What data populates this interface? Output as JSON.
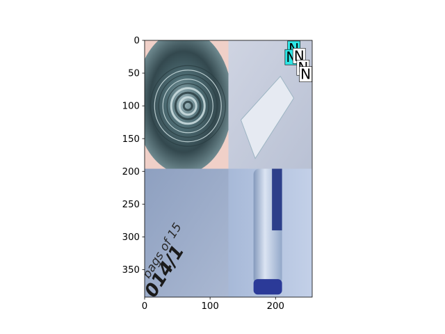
{
  "chart_data": {
    "type": "image",
    "title": "",
    "xlabel": "",
    "ylabel": "",
    "xlim": [
      0,
      256
    ],
    "ylim": [
      392,
      0
    ],
    "xticks": [
      0,
      100,
      200
    ],
    "yticks": [
      0,
      50,
      100,
      150,
      200,
      250,
      300,
      350
    ],
    "grid": false,
    "panels": [
      {
        "name": "top-left-glass-bottom",
        "extent": [
          0,
          128,
          0,
          196
        ],
        "tone": "#3f5961"
      },
      {
        "name": "top-right-paper",
        "extent": [
          128,
          256,
          0,
          196
        ],
        "tone": "#c6ccdb"
      },
      {
        "name": "bottom-left-bag-print",
        "extent": [
          0,
          128,
          196,
          392
        ],
        "tone": "#97a8c6"
      },
      {
        "name": "bottom-right-bottle",
        "extent": [
          128,
          256,
          196,
          392
        ],
        "tone": "#aebfdd"
      }
    ],
    "annotations": [
      {
        "text": "N",
        "x": 228,
        "y": 1,
        "box": "#2ee6e6"
      },
      {
        "text": "N",
        "x": 224,
        "y": 14,
        "box": "#2ee6e6"
      },
      {
        "text": "N",
        "x": 236,
        "y": 12,
        "box": "#ffffff"
      },
      {
        "text": "N",
        "x": 242,
        "y": 30,
        "box": "#ffffff"
      },
      {
        "text": "N",
        "x": 246,
        "y": 40,
        "box": "#ffffff"
      }
    ],
    "photo_text": {
      "bag_line1": "bags of 15",
      "bag_line2": "014/1"
    },
    "colors": {
      "accent_cyan": "#2ee6e6",
      "ink": "#1a1a1a"
    }
  }
}
